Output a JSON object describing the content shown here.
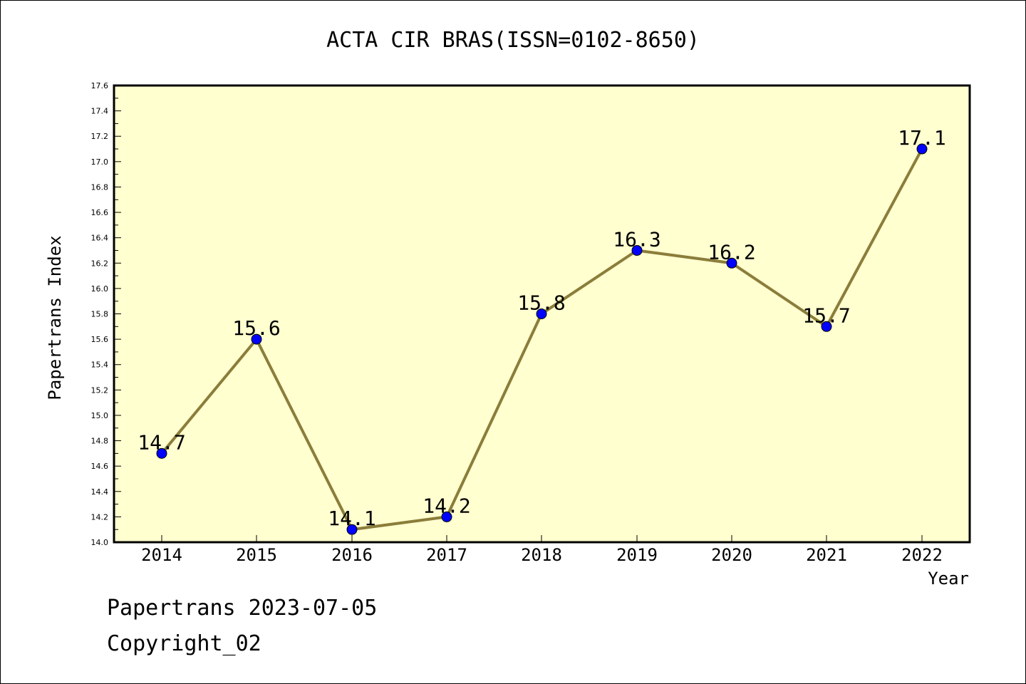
{
  "chart_data": {
    "type": "line",
    "title": "ACTA CIR BRAS(ISSN=0102-8650)",
    "xlabel": "Year",
    "ylabel": "Papertrans Index",
    "categories": [
      "2014",
      "2015",
      "2016",
      "2017",
      "2018",
      "2019",
      "2020",
      "2021",
      "2022"
    ],
    "series": [
      {
        "values": [
          14.7,
          15.6,
          14.1,
          14.2,
          15.8,
          16.3,
          16.2,
          15.7,
          17.1
        ],
        "data_labels": [
          "14.7",
          "15.6",
          "14.1",
          "14.2",
          "15.8",
          "16.3",
          "16.2",
          "15.7",
          "17.1"
        ]
      }
    ],
    "ylim": [
      14.0,
      17.6
    ],
    "yticks": [
      "14.0",
      "14.2",
      "14.4",
      "14.6",
      "14.8",
      "15.0",
      "15.2",
      "15.4",
      "15.6",
      "15.8",
      "16.0",
      "16.2",
      "16.4",
      "16.6",
      "16.8",
      "17.0",
      "17.2",
      "17.4",
      "17.6"
    ],
    "grid": false,
    "legend": "none",
    "colors": {
      "plot_background": "#ffffd0",
      "line": "#8b7d3a",
      "marker": "#0000ff"
    }
  },
  "footer": {
    "line1": "Papertrans 2023-07-05",
    "line2": "Copyright_02"
  }
}
